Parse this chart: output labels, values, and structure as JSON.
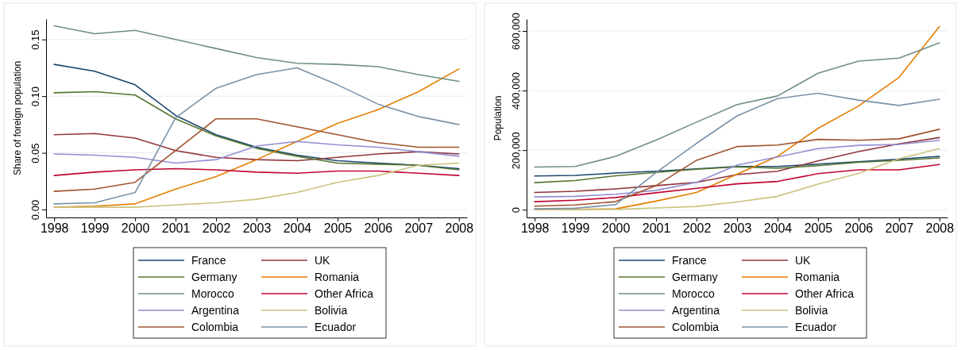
{
  "chart_data": [
    {
      "type": "line",
      "ylabel": "Share of foreign population",
      "x": [
        1998,
        1999,
        2000,
        2001,
        2002,
        2003,
        2004,
        2005,
        2006,
        2007,
        2008
      ],
      "xlim": [
        1997.8,
        2008.2
      ],
      "xticks": [
        1998,
        1999,
        2000,
        2001,
        2002,
        2003,
        2004,
        2005,
        2006,
        2007,
        2008
      ],
      "ylim": [
        -0.007,
        0.168
      ],
      "yticks": [
        {
          "value": 0,
          "label": "0.00"
        },
        {
          "value": 0.05,
          "label": "0.05"
        },
        {
          "value": 0.1,
          "label": "0.10"
        },
        {
          "value": 0.15,
          "label": "0.15"
        }
      ],
      "grid": "y",
      "legend": "bottom",
      "series": [
        {
          "name": "France",
          "color": "#1a476f",
          "values": [
            0.128,
            0.122,
            0.11,
            0.083,
            0.066,
            0.055,
            0.048,
            0.043,
            0.041,
            0.039,
            0.036
          ]
        },
        {
          "name": "UK",
          "color": "#90353b",
          "values": [
            0.066,
            0.067,
            0.063,
            0.052,
            0.046,
            0.044,
            0.043,
            0.046,
            0.049,
            0.051,
            0.049
          ]
        },
        {
          "name": "Germany",
          "color": "#55752f",
          "values": [
            0.103,
            0.104,
            0.101,
            0.08,
            0.065,
            0.054,
            0.047,
            0.041,
            0.04,
            0.039,
            0.035
          ]
        },
        {
          "name": "Romania",
          "color": "#e37e00",
          "values": [
            0.002,
            0.003,
            0.005,
            0.018,
            0.029,
            0.044,
            0.06,
            0.076,
            0.088,
            0.104,
            0.124
          ]
        },
        {
          "name": "Morocco",
          "color": "#6e8e84",
          "values": [
            0.162,
            0.155,
            0.158,
            0.15,
            0.142,
            0.134,
            0.129,
            0.128,
            0.126,
            0.119,
            0.113
          ]
        },
        {
          "name": "Other Africa",
          "color": "#c10534",
          "values": [
            0.03,
            0.033,
            0.035,
            0.036,
            0.035,
            0.033,
            0.032,
            0.034,
            0.034,
            0.032,
            0.03
          ]
        },
        {
          "name": "Argentina",
          "color": "#938dd2",
          "values": [
            0.049,
            0.048,
            0.046,
            0.041,
            0.044,
            0.056,
            0.06,
            0.057,
            0.055,
            0.051,
            0.047
          ]
        },
        {
          "name": "Bolivia",
          "color": "#cac27e",
          "values": [
            0.002,
            0.002,
            0.002,
            0.004,
            0.006,
            0.009,
            0.015,
            0.024,
            0.03,
            0.039,
            0.041
          ]
        },
        {
          "name": "Colombia",
          "color": "#a0522d",
          "values": [
            0.016,
            0.018,
            0.024,
            0.052,
            0.08,
            0.08,
            0.073,
            0.066,
            0.059,
            0.055,
            0.055
          ]
        },
        {
          "name": "Ecuador",
          "color": "#7b92a8",
          "values": [
            0.005,
            0.006,
            0.015,
            0.081,
            0.107,
            0.119,
            0.125,
            0.11,
            0.093,
            0.082,
            0.075
          ]
        }
      ]
    },
    {
      "type": "line",
      "ylabel": "Population",
      "x": [
        1998,
        1999,
        2000,
        2001,
        2002,
        2003,
        2004,
        2005,
        2006,
        2007,
        2008
      ],
      "xlim": [
        1997.8,
        2008.2
      ],
      "xticks": [
        1998,
        1999,
        2000,
        2001,
        2002,
        2003,
        2004,
        2005,
        2006,
        2007,
        2008
      ],
      "ylim": [
        -26000,
        640000
      ],
      "yticks": [
        {
          "value": 0,
          "label": "0"
        },
        {
          "value": 200000,
          "label": "200,000"
        },
        {
          "value": 400000,
          "label": "400,000"
        },
        {
          "value": 600000,
          "label": "600,000"
        }
      ],
      "grid": "y",
      "legend": "bottom",
      "series": [
        {
          "name": "France",
          "color": "#1a476f",
          "values": [
            113000,
            115000,
            123000,
            129000,
            137000,
            145000,
            145000,
            153000,
            161000,
            170000,
            179000
          ]
        },
        {
          "name": "UK",
          "color": "#90353b",
          "values": [
            58000,
            62000,
            70000,
            81000,
            92000,
            118000,
            129000,
            164000,
            195000,
            221000,
            242000
          ]
        },
        {
          "name": "Germany",
          "color": "#55752f",
          "values": [
            91000,
            98000,
            114000,
            125000,
            136000,
            144000,
            139000,
            148000,
            159000,
            166000,
            174000
          ]
        },
        {
          "name": "Romania",
          "color": "#e37e00",
          "values": [
            1000,
            1000,
            3000,
            29000,
            58000,
            119000,
            179000,
            273000,
            348000,
            444000,
            615000
          ]
        },
        {
          "name": "Morocco",
          "color": "#6e8e84",
          "values": [
            143000,
            145000,
            179000,
            234000,
            294000,
            353000,
            382000,
            458000,
            499000,
            509000,
            560000
          ]
        },
        {
          "name": "Other Africa",
          "color": "#c10534",
          "values": [
            27000,
            32000,
            41000,
            57000,
            72000,
            87000,
            95000,
            121000,
            134000,
            134000,
            152000
          ]
        },
        {
          "name": "Argentina",
          "color": "#938dd2",
          "values": [
            43000,
            45000,
            52000,
            65000,
            92000,
            150000,
            177000,
            205000,
            216000,
            219000,
            233000
          ]
        },
        {
          "name": "Bolivia",
          "color": "#cac27e",
          "values": [
            1000,
            1000,
            1000,
            6000,
            11000,
            26000,
            45000,
            86000,
            122000,
            171000,
            205000
          ]
        },
        {
          "name": "Colombia",
          "color": "#a0522d",
          "values": [
            12000,
            16000,
            27000,
            81000,
            166000,
            212000,
            217000,
            236000,
            233000,
            238000,
            270000
          ]
        },
        {
          "name": "Ecuador",
          "color": "#7b92a8",
          "values": [
            3000,
            5000,
            17000,
            125000,
            223000,
            315000,
            373000,
            391000,
            368000,
            350000,
            371000
          ]
        }
      ]
    }
  ]
}
